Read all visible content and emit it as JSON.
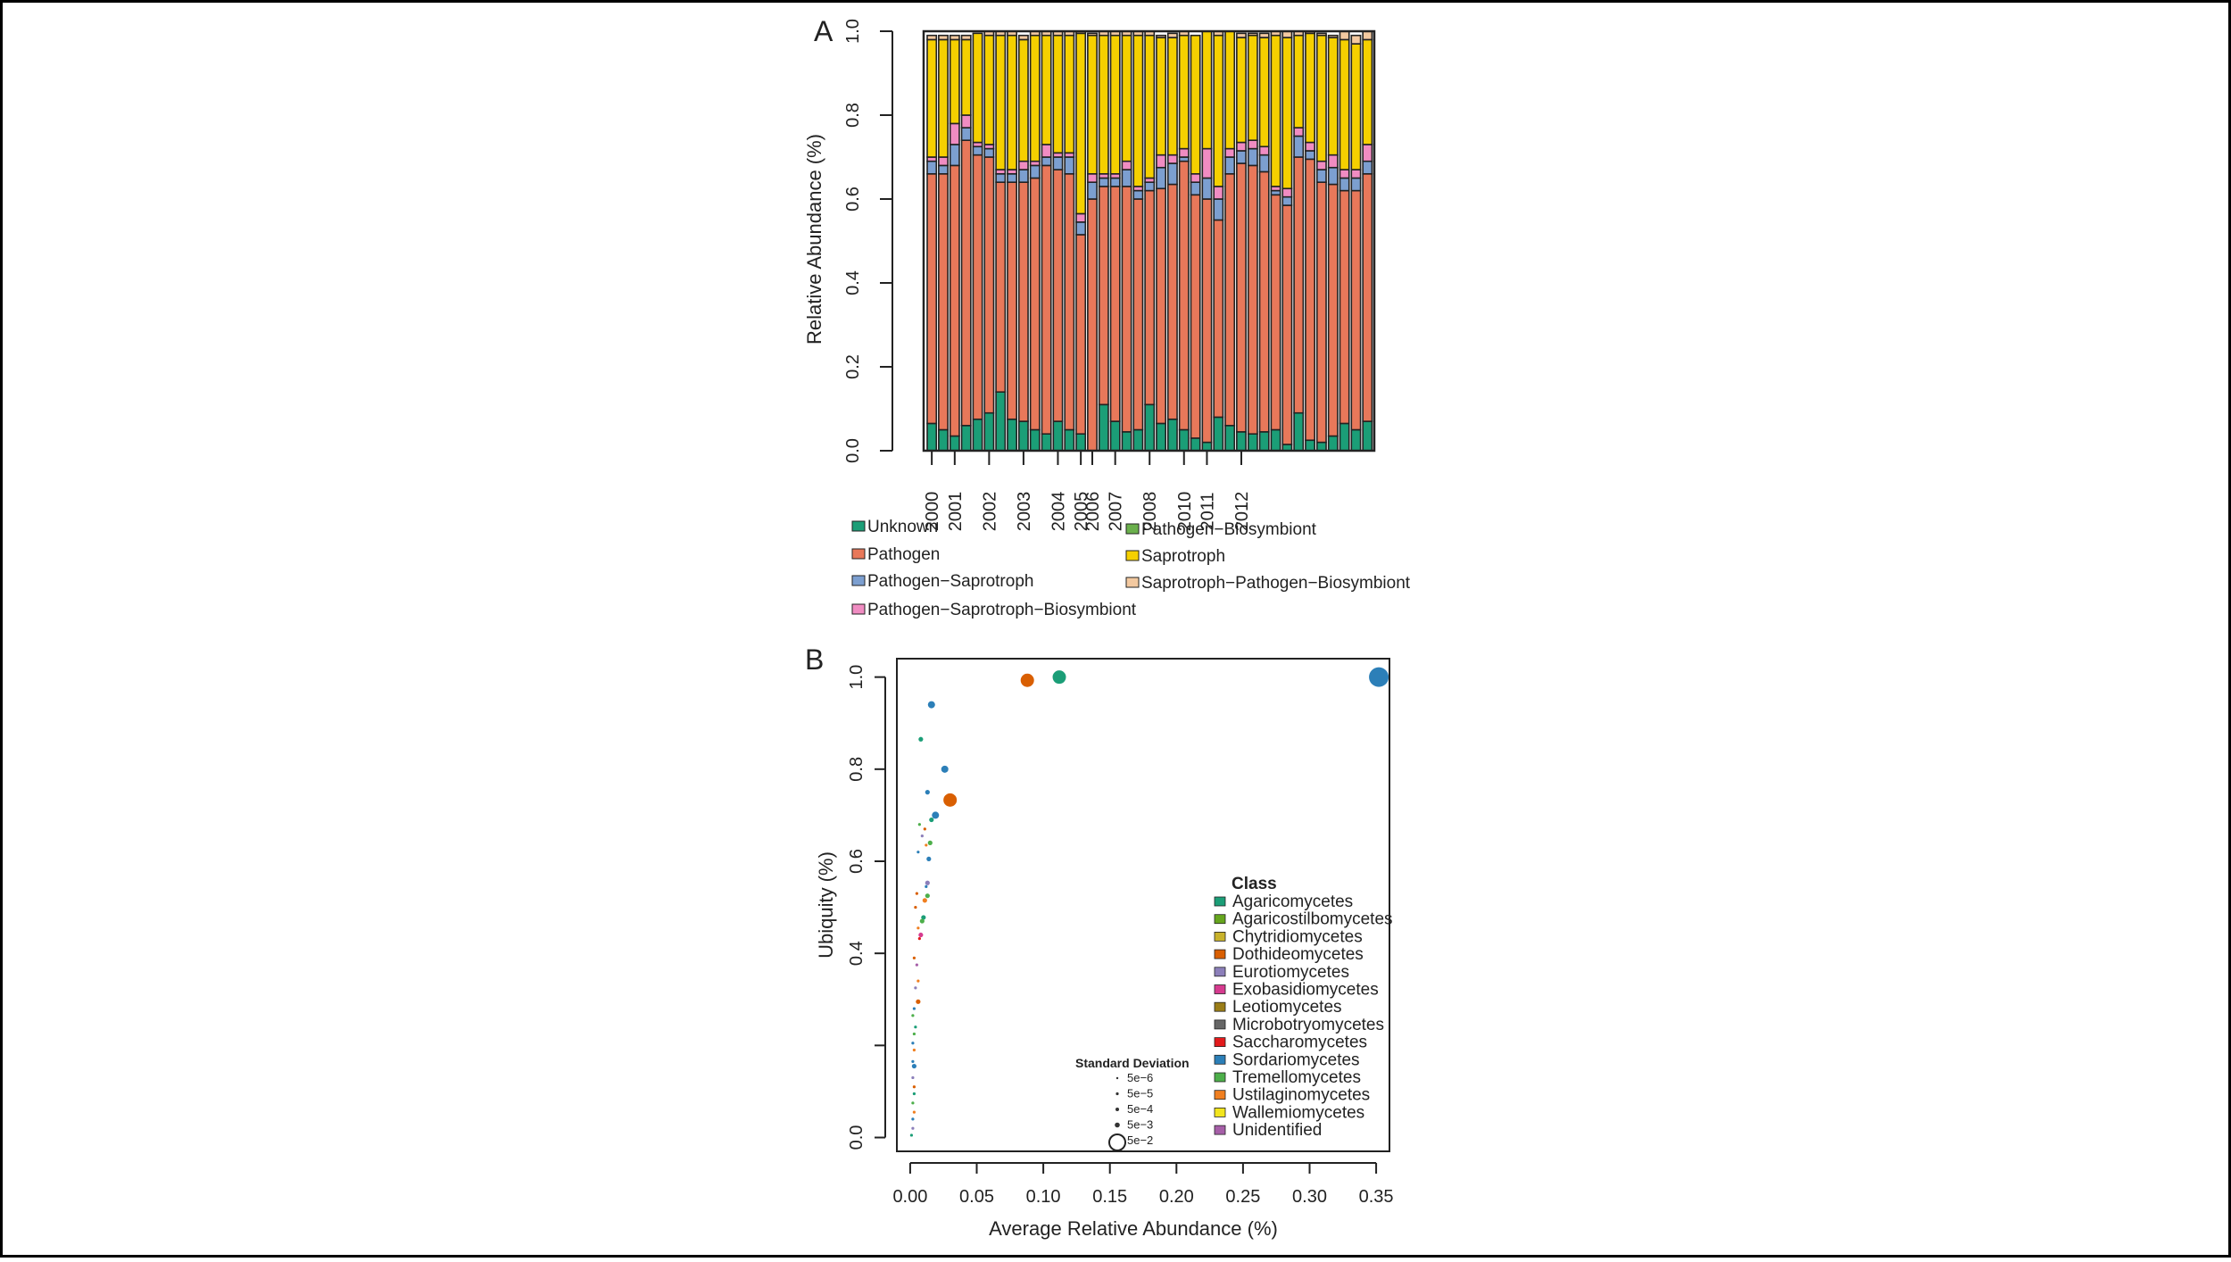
{
  "panels": [
    "A",
    "B"
  ],
  "chart_data": [
    {
      "type": "bar",
      "stacked": true,
      "panel": "A",
      "title": "",
      "xlabel": "",
      "ylabel": "Relative Abundance (%)",
      "ylim": [
        0,
        1
      ],
      "yticks": [
        "0.0",
        "0.2",
        "0.4",
        "0.6",
        "0.8",
        "1.0"
      ],
      "year_labels": [
        "2000",
        "2001",
        "2002",
        "2003",
        "2004",
        "2005",
        "2006",
        "2007",
        "2008",
        "2010",
        "2011",
        "2012"
      ],
      "year_label_sample_index": [
        0,
        2,
        5,
        8,
        11,
        13,
        14,
        16,
        19,
        22,
        24,
        27
      ],
      "series": [
        {
          "name": "Unknown",
          "color": "#1b9e77",
          "values": [
            0.065,
            0.05,
            0.035,
            0.06,
            0.075,
            0.09,
            0.14,
            0.075,
            0.07,
            0.05,
            0.04,
            0.07,
            0.05,
            0.04,
            0.0,
            0.11,
            0.07,
            0.045,
            0.05,
            0.11,
            0.065,
            0.075,
            0.05,
            0.03,
            0.02,
            0.08,
            0.06,
            0.045,
            0.04,
            0.045,
            0.05,
            0.015,
            0.09,
            0.025,
            0.02,
            0.035,
            0.065,
            0.05,
            0.07
          ]
        },
        {
          "name": "Pathogen",
          "color": "#e8785a",
          "values": [
            0.595,
            0.61,
            0.645,
            0.68,
            0.63,
            0.61,
            0.5,
            0.565,
            0.57,
            0.6,
            0.64,
            0.6,
            0.61,
            0.475,
            0.6,
            0.52,
            0.56,
            0.585,
            0.55,
            0.51,
            0.56,
            0.56,
            0.64,
            0.58,
            0.58,
            0.47,
            0.6,
            0.64,
            0.64,
            0.62,
            0.56,
            0.57,
            0.61,
            0.67,
            0.62,
            0.6,
            0.555,
            0.57,
            0.59
          ]
        },
        {
          "name": "Pathogen−Saprotroph",
          "color": "#7c9fd0",
          "values": [
            0.03,
            0.02,
            0.05,
            0.03,
            0.02,
            0.02,
            0.02,
            0.02,
            0.03,
            0.03,
            0.02,
            0.03,
            0.04,
            0.03,
            0.04,
            0.02,
            0.02,
            0.04,
            0.02,
            0.02,
            0.05,
            0.05,
            0.01,
            0.03,
            0.05,
            0.05,
            0.04,
            0.03,
            0.04,
            0.04,
            0.01,
            0.02,
            0.05,
            0.02,
            0.03,
            0.04,
            0.03,
            0.03,
            0.03
          ]
        },
        {
          "name": "Pathogen−Saprotroph−Biosymbiont",
          "color": "#f08cc2",
          "values": [
            0.01,
            0.02,
            0.05,
            0.03,
            0.01,
            0.01,
            0.01,
            0.01,
            0.02,
            0.01,
            0.03,
            0.01,
            0.01,
            0.02,
            0.02,
            0.01,
            0.01,
            0.02,
            0.01,
            0.01,
            0.03,
            0.02,
            0.02,
            0.02,
            0.07,
            0.03,
            0.02,
            0.02,
            0.02,
            0.02,
            0.01,
            0.02,
            0.02,
            0.02,
            0.02,
            0.03,
            0.02,
            0.02,
            0.04
          ]
        },
        {
          "name": "Pathogen−Biosymbiont",
          "color": "#6ab04c",
          "values": [
            0,
            0,
            0,
            0,
            0,
            0,
            0,
            0,
            0,
            0,
            0,
            0,
            0,
            0,
            0,
            0,
            0,
            0,
            0,
            0,
            0,
            0,
            0,
            0,
            0,
            0,
            0,
            0,
            0,
            0,
            0,
            0,
            0,
            0,
            0,
            0,
            0,
            0,
            0
          ]
        },
        {
          "name": "Saprotroph",
          "color": "#f5d000",
          "values": [
            0.28,
            0.28,
            0.2,
            0.18,
            0.26,
            0.26,
            0.32,
            0.32,
            0.29,
            0.3,
            0.26,
            0.28,
            0.28,
            0.43,
            0.33,
            0.33,
            0.33,
            0.3,
            0.36,
            0.34,
            0.28,
            0.28,
            0.27,
            0.33,
            0.28,
            0.36,
            0.28,
            0.25,
            0.25,
            0.26,
            0.36,
            0.36,
            0.22,
            0.26,
            0.3,
            0.28,
            0.31,
            0.3,
            0.25
          ]
        },
        {
          "name": "Saprotroph−Pathogen−Biosymbiont",
          "color": "#f3c9a0",
          "values": [
            0.01,
            0.01,
            0.01,
            0.01,
            0.0,
            0.01,
            0.01,
            0.01,
            0.01,
            0.01,
            0.01,
            0.01,
            0.01,
            0.005,
            0.005,
            0.01,
            0.01,
            0.01,
            0.01,
            0.01,
            0.005,
            0.01,
            0.01,
            0.0,
            0.0,
            0.01,
            0.0,
            0.01,
            0.005,
            0.01,
            0.01,
            0.015,
            0.01,
            0.005,
            0.005,
            0.005,
            0.02,
            0.02,
            0.02
          ]
        }
      ],
      "legend": [
        "Unknown",
        "Pathogen",
        "Pathogen−Saprotroph",
        "Pathogen−Saprotroph−Biosymbiont",
        "Pathogen−Biosymbiont",
        "Saprotroph",
        "Saprotroph−Pathogen−Biosymbiont"
      ]
    },
    {
      "type": "scatter",
      "panel": "B",
      "title": "",
      "xlabel": "Average Relative Abundance (%)",
      "ylabel": "Ubiquity (%)",
      "xlim": [
        -0.01,
        0.36
      ],
      "ylim": [
        -0.03,
        1.04
      ],
      "xticks": [
        "0.00",
        "0.05",
        "0.10",
        "0.15",
        "0.20",
        "0.25",
        "0.30",
        "0.35"
      ],
      "yticks": [
        "0.0",
        "0.4",
        "0.6",
        "0.8",
        "1.0"
      ],
      "ytick_values": [
        0.0,
        0.4,
        0.6,
        0.8,
        1.0
      ],
      "legend_title": "Class",
      "classes": [
        {
          "name": "Agaricomycetes",
          "color": "#1b9e77"
        },
        {
          "name": "Agaricostilbomycetes",
          "color": "#66a61e"
        },
        {
          "name": "Chytridiomycetes",
          "color": "#c8b22b"
        },
        {
          "name": "Dothideomycetes",
          "color": "#d95f02"
        },
        {
          "name": "Eurotiomycetes",
          "color": "#8c7fba"
        },
        {
          "name": "Exobasidiomycetes",
          "color": "#d63b8f"
        },
        {
          "name": "Leotiomycetes",
          "color": "#9a7d17"
        },
        {
          "name": "Microbotryomycetes",
          "color": "#666666"
        },
        {
          "name": "Saccharomycetes",
          "color": "#e31a1c"
        },
        {
          "name": "Sordariomycetes",
          "color": "#2c7fb8"
        },
        {
          "name": "Tremellomycetes",
          "color": "#4daf4a"
        },
        {
          "name": "Ustilaginomycetes",
          "color": "#f07f20"
        },
        {
          "name": "Wallemiomycetes",
          "color": "#f2e51e"
        },
        {
          "name": "Unidentified",
          "color": "#a65fa8"
        }
      ],
      "size_legend_title": "Standard Deviation",
      "size_legend": [
        "5e−6",
        "5e−5",
        "5e−4",
        "5e−3",
        "5e−2"
      ],
      "points": [
        {
          "x": 0.352,
          "y": 1.0,
          "class": "Sordariomycetes",
          "sd": "5e−2"
        },
        {
          "x": 0.112,
          "y": 1.0,
          "class": "Agaricomycetes",
          "sd": "5e−3"
        },
        {
          "x": 0.088,
          "y": 0.993,
          "class": "Dothideomycetes",
          "sd": "5e−3"
        },
        {
          "x": 0.016,
          "y": 0.94,
          "class": "Sordariomycetes",
          "sd": "5e−4"
        },
        {
          "x": 0.008,
          "y": 0.865,
          "class": "Agaricomycetes",
          "sd": "5e−5"
        },
        {
          "x": 0.026,
          "y": 0.8,
          "class": "Sordariomycetes",
          "sd": "5e−4"
        },
        {
          "x": 0.013,
          "y": 0.75,
          "class": "Sordariomycetes",
          "sd": "5e−5"
        },
        {
          "x": 0.03,
          "y": 0.733,
          "class": "Dothideomycetes",
          "sd": "5e−3"
        },
        {
          "x": 0.019,
          "y": 0.7,
          "class": "Sordariomycetes",
          "sd": "5e−4"
        },
        {
          "x": 0.016,
          "y": 0.69,
          "class": "Agaricomycetes",
          "sd": "5e−5"
        },
        {
          "x": 0.007,
          "y": 0.68,
          "class": "Tremellomycetes",
          "sd": "5e−6"
        },
        {
          "x": 0.011,
          "y": 0.67,
          "class": "Dothideomycetes",
          "sd": "5e−6"
        },
        {
          "x": 0.009,
          "y": 0.655,
          "class": "Eurotiomycetes",
          "sd": "5e−6"
        },
        {
          "x": 0.015,
          "y": 0.64,
          "class": "Tremellomycetes",
          "sd": "5e−5"
        },
        {
          "x": 0.012,
          "y": 0.635,
          "class": "Ustilaginomycetes",
          "sd": "5e−6"
        },
        {
          "x": 0.006,
          "y": 0.62,
          "class": "Sordariomycetes",
          "sd": "5e−6"
        },
        {
          "x": 0.014,
          "y": 0.605,
          "class": "Sordariomycetes",
          "sd": "5e−5"
        },
        {
          "x": 0.013,
          "y": 0.553,
          "class": "Eurotiomycetes",
          "sd": "5e−5"
        },
        {
          "x": 0.012,
          "y": 0.545,
          "class": "Sordariomycetes",
          "sd": "5e−6"
        },
        {
          "x": 0.005,
          "y": 0.53,
          "class": "Dothideomycetes",
          "sd": "5e−6"
        },
        {
          "x": 0.013,
          "y": 0.525,
          "class": "Tremellomycetes",
          "sd": "5e−5"
        },
        {
          "x": 0.011,
          "y": 0.515,
          "class": "Ustilaginomycetes",
          "sd": "5e−5"
        },
        {
          "x": 0.004,
          "y": 0.5,
          "class": "Dothideomycetes",
          "sd": "5e−6"
        },
        {
          "x": 0.01,
          "y": 0.478,
          "class": "Agaricomycetes",
          "sd": "5e−5"
        },
        {
          "x": 0.009,
          "y": 0.47,
          "class": "Tremellomycetes",
          "sd": "5e−5"
        },
        {
          "x": 0.006,
          "y": 0.455,
          "class": "Ustilaginomycetes",
          "sd": "5e−6"
        },
        {
          "x": 0.008,
          "y": 0.44,
          "class": "Exobasidiomycetes",
          "sd": "5e−5"
        },
        {
          "x": 0.007,
          "y": 0.432,
          "class": "Saccharomycetes",
          "sd": "5e−6"
        },
        {
          "x": 0.003,
          "y": 0.39,
          "class": "Dothideomycetes",
          "sd": "5e−6"
        },
        {
          "x": 0.005,
          "y": 0.375,
          "class": "Unidentified",
          "sd": "5e−6"
        },
        {
          "x": 0.006,
          "y": 0.34,
          "class": "Ustilaginomycetes",
          "sd": "5e−6"
        },
        {
          "x": 0.004,
          "y": 0.325,
          "class": "Eurotiomycetes",
          "sd": "5e−6"
        },
        {
          "x": 0.006,
          "y": 0.295,
          "class": "Dothideomycetes",
          "sd": "5e−5"
        },
        {
          "x": 0.003,
          "y": 0.28,
          "class": "Sordariomycetes",
          "sd": "5e−6"
        },
        {
          "x": 0.002,
          "y": 0.265,
          "class": "Tremellomycetes",
          "sd": "5e−6"
        },
        {
          "x": 0.004,
          "y": 0.24,
          "class": "Agaricomycetes",
          "sd": "5e−6"
        },
        {
          "x": 0.003,
          "y": 0.225,
          "class": "Tremellomycetes",
          "sd": "5e−6"
        },
        {
          "x": 0.002,
          "y": 0.205,
          "class": "Sordariomycetes",
          "sd": "5e−6"
        },
        {
          "x": 0.003,
          "y": 0.19,
          "class": "Ustilaginomycetes",
          "sd": "5e−6"
        },
        {
          "x": 0.002,
          "y": 0.165,
          "class": "Sordariomycetes",
          "sd": "5e−6"
        },
        {
          "x": 0.003,
          "y": 0.155,
          "class": "Sordariomycetes",
          "sd": "5e−5"
        },
        {
          "x": 0.002,
          "y": 0.13,
          "class": "Eurotiomycetes",
          "sd": "5e−6"
        },
        {
          "x": 0.003,
          "y": 0.11,
          "class": "Dothideomycetes",
          "sd": "5e−6"
        },
        {
          "x": 0.003,
          "y": 0.095,
          "class": "Agaricomycetes",
          "sd": "5e−6"
        },
        {
          "x": 0.002,
          "y": 0.075,
          "class": "Tremellomycetes",
          "sd": "5e−6"
        },
        {
          "x": 0.003,
          "y": 0.055,
          "class": "Ustilaginomycetes",
          "sd": "5e−6"
        },
        {
          "x": 0.002,
          "y": 0.04,
          "class": "Sordariomycetes",
          "sd": "5e−6"
        },
        {
          "x": 0.002,
          "y": 0.02,
          "class": "Eurotiomycetes",
          "sd": "5e−6"
        },
        {
          "x": 0.001,
          "y": 0.005,
          "class": "Agaricomycetes",
          "sd": "5e−6"
        }
      ]
    }
  ]
}
